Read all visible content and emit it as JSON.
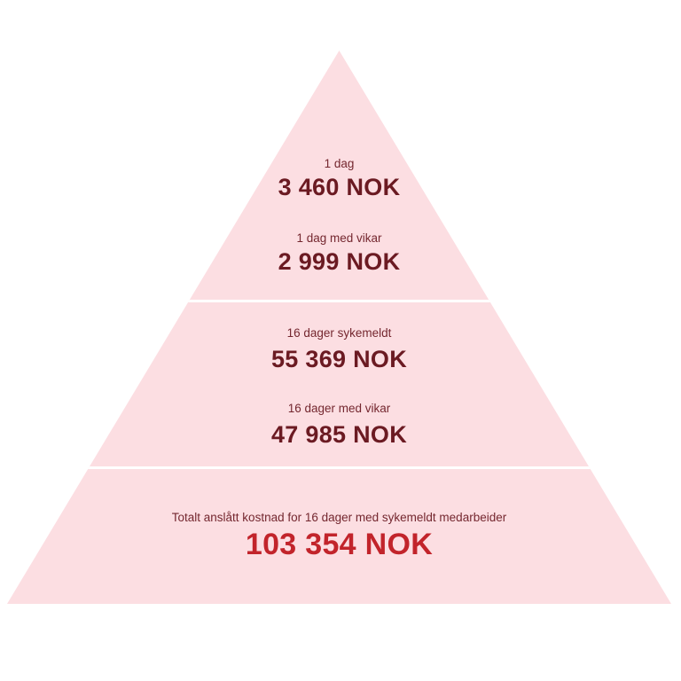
{
  "pyramid": {
    "colors": {
      "background_color": "#ffffff",
      "fill_color": "#fcdee2",
      "divider_color": "#ffffff",
      "label_color": "#74272f",
      "value_color": "#6b1a22",
      "total_value_color": "#c2242b"
    },
    "tiers": [
      {
        "name": "top-tier",
        "rows": [
          {
            "label": "1 dag",
            "value": "3 460 NOK"
          },
          {
            "label": "1 dag med vikar",
            "value": "2 999 NOK"
          }
        ]
      },
      {
        "name": "middle-tier",
        "rows": [
          {
            "label": "16 dager sykemeldt",
            "value": "55 369 NOK"
          },
          {
            "label": "16 dager med vikar",
            "value": "47 985 NOK"
          }
        ]
      },
      {
        "name": "bottom-tier",
        "rows": [
          {
            "label": "Totalt anslått kostnad for 16 dager med sykemeldt medarbeider",
            "value": "103 354 NOK"
          }
        ]
      }
    ]
  },
  "chart_data": {
    "type": "pyramid",
    "title": "",
    "currency": "NOK",
    "levels": [
      {
        "tier": 1,
        "items": [
          {
            "label": "1 dag",
            "value": 3460
          },
          {
            "label": "1 dag med vikar",
            "value": 2999
          }
        ]
      },
      {
        "tier": 2,
        "items": [
          {
            "label": "16 dager sykemeldt",
            "value": 55369
          },
          {
            "label": "16 dager med vikar",
            "value": 47985
          }
        ]
      },
      {
        "tier": 3,
        "items": [
          {
            "label": "Totalt anslått kostnad for 16 dager med sykemeldt medarbeider",
            "value": 103354
          }
        ]
      }
    ],
    "layout": {
      "shape": "triangle",
      "tier_separators": "white horizontal lines",
      "text_alignment": "center"
    }
  }
}
